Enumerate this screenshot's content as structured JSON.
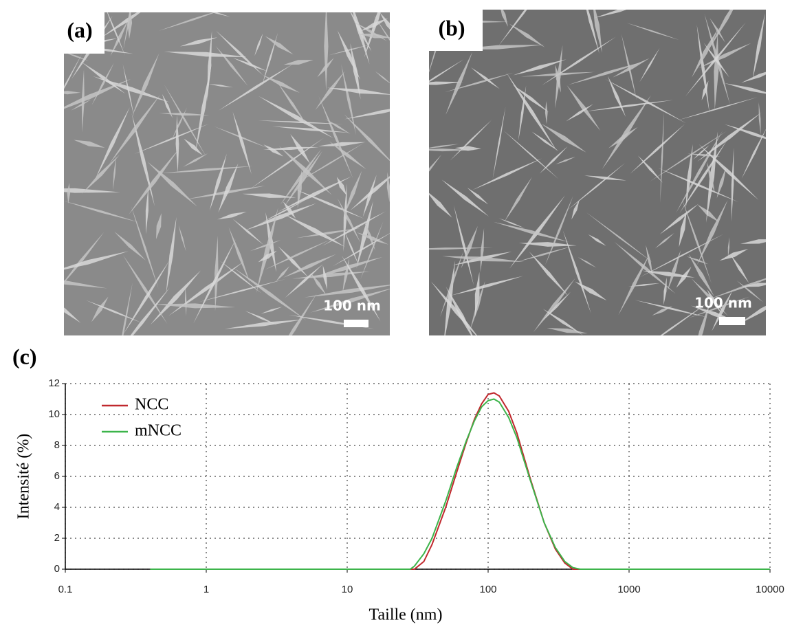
{
  "panels": [
    {
      "label": "(a)",
      "scale_bar": "100 nm"
    },
    {
      "label": "(b)",
      "scale_bar": "100 nm"
    }
  ],
  "chart_label": "(c)",
  "chart_data": {
    "type": "line",
    "x_label": "Taille (nm)",
    "y_label": "Intensité  (%)",
    "x": [
      0.4,
      1,
      10,
      28,
      30,
      35,
      40,
      50,
      60,
      70,
      80,
      90,
      100,
      110,
      120,
      140,
      160,
      200,
      250,
      300,
      350,
      400,
      450,
      1000,
      10000
    ],
    "series": [
      {
        "name": "NCC",
        "color": "#c0282d",
        "values": [
          0,
          0,
          0,
          0,
          0,
          0.5,
          1.6,
          4.0,
          6.3,
          8.2,
          9.7,
          10.7,
          11.3,
          11.4,
          11.2,
          10.2,
          8.8,
          5.8,
          3.0,
          1.3,
          0.4,
          0,
          0,
          0,
          0
        ]
      },
      {
        "name": "mNCC",
        "color": "#3cb44a",
        "values": [
          0,
          0,
          0,
          0,
          0.2,
          1.0,
          2.0,
          4.4,
          6.6,
          8.3,
          9.6,
          10.5,
          10.9,
          11.0,
          10.8,
          9.8,
          8.5,
          5.7,
          3.0,
          1.4,
          0.5,
          0.1,
          0,
          0,
          0
        ]
      }
    ],
    "xscale": "log",
    "xlim": [
      0.1,
      10000
    ],
    "xticks": [
      0.1,
      1,
      10,
      100,
      1000,
      10000
    ],
    "ylim": [
      0,
      12
    ],
    "yticks": [
      0,
      2,
      4,
      6,
      8,
      10,
      12
    ],
    "grid": true,
    "legend": "upper left"
  }
}
